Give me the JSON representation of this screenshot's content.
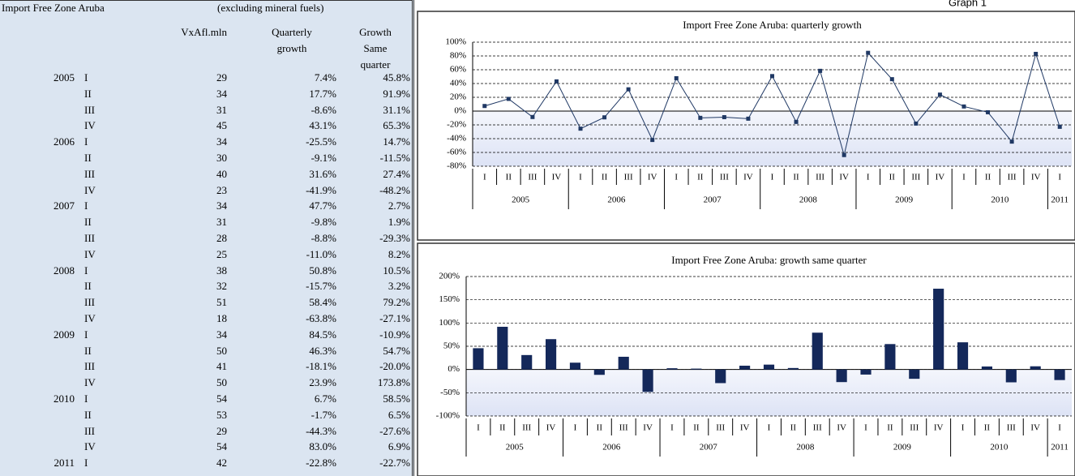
{
  "page_title": "Graph 1",
  "table": {
    "title": "Import Free Zone Aruba",
    "subtitle": "(excluding mineral fuels)",
    "headers": [
      "VxAfl.mln",
      "Quarterly growth",
      "Growth Same quarter"
    ],
    "rows": [
      [
        "2005",
        "I",
        "29",
        "7.4%",
        "45.8%"
      ],
      [
        null,
        "II",
        "34",
        "17.7%",
        "91.9%"
      ],
      [
        null,
        "III",
        "31",
        "-8.6%",
        "31.1%"
      ],
      [
        null,
        "IV",
        "45",
        "43.1%",
        "65.3%"
      ],
      [
        "2006",
        "I",
        "34",
        "-25.5%",
        "14.7%"
      ],
      [
        null,
        "II",
        "30",
        "-9.1%",
        "-11.5%"
      ],
      [
        null,
        "III",
        "40",
        "31.6%",
        "27.4%"
      ],
      [
        null,
        "IV",
        "23",
        "-41.9%",
        "-48.2%"
      ],
      [
        "2007",
        "I",
        "34",
        "47.7%",
        "2.7%"
      ],
      [
        null,
        "II",
        "31",
        "-9.8%",
        "1.9%"
      ],
      [
        null,
        "III",
        "28",
        "-8.8%",
        "-29.3%"
      ],
      [
        null,
        "IV",
        "25",
        "-11.0%",
        "8.2%"
      ],
      [
        "2008",
        "I",
        "38",
        "50.8%",
        "10.5%"
      ],
      [
        null,
        "II",
        "32",
        "-15.7%",
        "3.2%"
      ],
      [
        null,
        "III",
        "51",
        "58.4%",
        "79.2%"
      ],
      [
        null,
        "IV",
        "18",
        "-63.8%",
        "-27.1%"
      ],
      [
        "2009",
        "I",
        "34",
        "84.5%",
        "-10.9%"
      ],
      [
        null,
        "II",
        "50",
        "46.3%",
        "54.7%"
      ],
      [
        null,
        "III",
        "41",
        "-18.1%",
        "-20.0%"
      ],
      [
        null,
        "IV",
        "50",
        "23.9%",
        "173.8%"
      ],
      [
        "2010",
        "I",
        "54",
        "6.7%",
        "58.5%"
      ],
      [
        null,
        "II",
        "53",
        "-1.7%",
        "6.5%"
      ],
      [
        null,
        "III",
        "29",
        "-44.3%",
        "-27.6%"
      ],
      [
        null,
        "IV",
        "54",
        "83.0%",
        "6.9%"
      ],
      [
        "2011",
        "I",
        "42",
        "-22.8%",
        "-22.7%"
      ]
    ]
  },
  "chart_data": [
    {
      "type": "line",
      "title": "Import Free Zone Aruba: quarterly growth",
      "color": "#1f3864",
      "categories": [
        "I",
        "II",
        "III",
        "IV",
        "I",
        "II",
        "III",
        "IV",
        "I",
        "II",
        "III",
        "IV",
        "I",
        "II",
        "III",
        "IV",
        "I",
        "II",
        "III",
        "IV",
        "I",
        "II",
        "III",
        "IV",
        "I"
      ],
      "x_groups": [
        "2005",
        "2006",
        "2007",
        "2008",
        "2009",
        "2010",
        "2011"
      ],
      "values": [
        7.4,
        17.7,
        -8.6,
        43.1,
        -25.5,
        -9.1,
        31.6,
        -41.9,
        47.7,
        -9.8,
        -8.8,
        -11.0,
        50.8,
        -15.7,
        58.4,
        -63.8,
        84.5,
        46.3,
        -18.1,
        23.9,
        6.7,
        -1.7,
        -44.3,
        83.0,
        -22.8
      ],
      "ylim": [
        -80,
        100
      ],
      "yticks": [
        {
          "value": -80,
          "label": "-80%"
        },
        {
          "value": -60,
          "label": "-60%"
        },
        {
          "value": -40,
          "label": "-40%"
        },
        {
          "value": -20,
          "label": "-20%"
        },
        {
          "value": 0,
          "label": "0%"
        },
        {
          "value": 20,
          "label": "20%"
        },
        {
          "value": 40,
          "label": "40%"
        },
        {
          "value": 60,
          "label": "60%"
        },
        {
          "value": 80,
          "label": "80%"
        },
        {
          "value": 100,
          "label": "100%"
        }
      ],
      "grid": true
    },
    {
      "type": "bar",
      "title": "Import Free Zone Aruba: growth same quarter",
      "color": "#14285a",
      "categories": [
        "I",
        "II",
        "III",
        "IV",
        "I",
        "II",
        "III",
        "IV",
        "I",
        "II",
        "III",
        "IV",
        "I",
        "II",
        "III",
        "IV",
        "I",
        "II",
        "III",
        "IV",
        "I",
        "II",
        "III",
        "IV",
        "I"
      ],
      "x_groups": [
        "2005",
        "2006",
        "2007",
        "2008",
        "2009",
        "2010",
        "2011"
      ],
      "values": [
        45.8,
        91.9,
        31.1,
        65.3,
        14.7,
        -11.5,
        27.4,
        -48.2,
        2.7,
        1.9,
        -29.3,
        8.2,
        10.5,
        3.2,
        79.2,
        -27.1,
        -10.9,
        54.7,
        -20.0,
        173.8,
        58.5,
        6.5,
        -27.6,
        6.9,
        -22.7
      ],
      "ylim": [
        -100,
        200
      ],
      "yticks": [
        {
          "value": -100,
          "label": "-100%"
        },
        {
          "value": -50,
          "label": "-50%"
        },
        {
          "value": 0,
          "label": "0%"
        },
        {
          "value": 50,
          "label": "50%"
        },
        {
          "value": 100,
          "label": "100%"
        },
        {
          "value": 150,
          "label": "150%"
        },
        {
          "value": 200,
          "label": "200%"
        }
      ],
      "grid": true
    }
  ]
}
